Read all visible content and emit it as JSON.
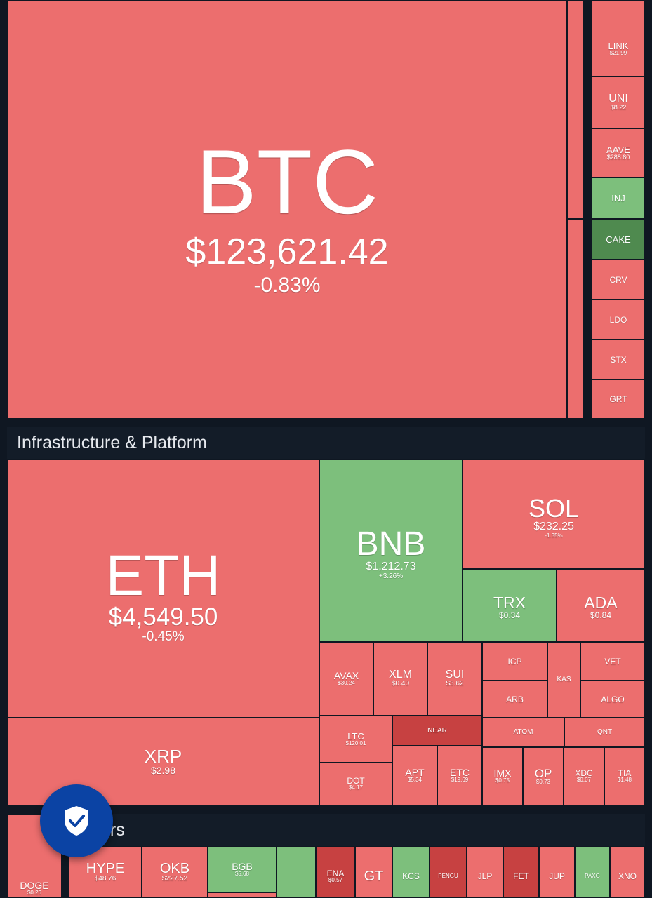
{
  "colors": {
    "background": "#0f1722",
    "header": "#131c28",
    "red": "#ec6e6e",
    "dark_red": "#c74141",
    "green": "#7dbf7c",
    "dark_green": "#4f8a4f",
    "shield_button": "#0b43a4"
  },
  "sections": {
    "infrastructure": "Infrastructure & Platform",
    "others_visible": "ers"
  },
  "tiles": {
    "btc": {
      "symbol": "BTC",
      "price": "$123,621.42",
      "change": "-0.83%"
    },
    "link": {
      "symbol": "LINK",
      "price": "$21.99"
    },
    "uni": {
      "symbol": "UNI",
      "price": "$8.22"
    },
    "aave": {
      "symbol": "AAVE",
      "price": "$288.80"
    },
    "inj": {
      "symbol": "INJ"
    },
    "cake": {
      "symbol": "CAKE"
    },
    "crv": {
      "symbol": "CRV"
    },
    "ldo": {
      "symbol": "LDO"
    },
    "stx": {
      "symbol": "STX"
    },
    "grt": {
      "symbol": "GRT"
    },
    "eth": {
      "symbol": "ETH",
      "price": "$4,549.50",
      "change": "-0.45%"
    },
    "bnb": {
      "symbol": "BNB",
      "price": "$1,212.73",
      "change": "+3.26%"
    },
    "sol": {
      "symbol": "SOL",
      "price": "$232.25",
      "change": "-1.35%"
    },
    "trx": {
      "symbol": "TRX",
      "price": "$0.34"
    },
    "ada": {
      "symbol": "ADA",
      "price": "$0.84"
    },
    "xrp": {
      "symbol": "XRP",
      "price": "$2.98"
    },
    "avax": {
      "symbol": "AVAX",
      "price": "$30.24"
    },
    "xlm": {
      "symbol": "XLM",
      "price": "$0.40"
    },
    "sui": {
      "symbol": "SUI",
      "price": "$3.62"
    },
    "icp": {
      "symbol": "ICP"
    },
    "kas": {
      "symbol": "KAS"
    },
    "vet": {
      "symbol": "VET"
    },
    "arb": {
      "symbol": "ARB"
    },
    "algo": {
      "symbol": "ALGO"
    },
    "ltc": {
      "symbol": "LTC",
      "price": "$120.01"
    },
    "near": {
      "symbol": "NEAR"
    },
    "atom": {
      "symbol": "ATOM"
    },
    "qnt": {
      "symbol": "QNT"
    },
    "dot": {
      "symbol": "DOT",
      "price": "$4.17"
    },
    "apt": {
      "symbol": "APT",
      "price": "$5.34"
    },
    "etc": {
      "symbol": "ETC",
      "price": "$19.69"
    },
    "imx": {
      "symbol": "IMX",
      "price": "$0.75"
    },
    "op": {
      "symbol": "OP",
      "price": "$0.73"
    },
    "xdc": {
      "symbol": "XDC",
      "price": "$0.07"
    },
    "tia": {
      "symbol": "TIA",
      "price": "$1.48"
    },
    "doge": {
      "symbol": "DOGE",
      "price": "$0.26"
    },
    "hype": {
      "symbol": "HYPE",
      "price": "$48.76"
    },
    "okb": {
      "symbol": "OKB",
      "price": "$227.52"
    },
    "bgb": {
      "symbol": "BGB",
      "price": "$5.68"
    },
    "ena": {
      "symbol": "ENA",
      "price": "$0.57"
    },
    "gt": {
      "symbol": "GT"
    },
    "kcs": {
      "symbol": "KCS"
    },
    "pengu": {
      "symbol": "PENGU"
    },
    "jlp": {
      "symbol": "JLP"
    },
    "fet": {
      "symbol": "FET"
    },
    "jup": {
      "symbol": "JUP"
    },
    "paxg": {
      "symbol": "PAXG"
    },
    "xno": {
      "symbol": "XNO"
    }
  }
}
